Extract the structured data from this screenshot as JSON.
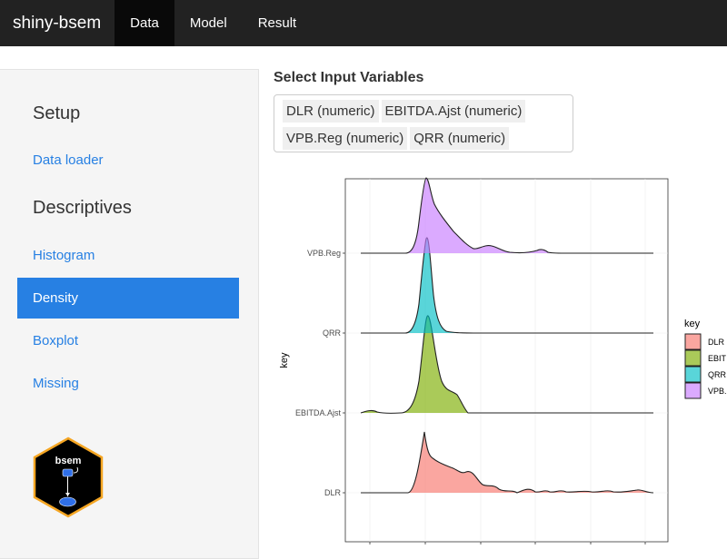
{
  "navbar": {
    "brand": "shiny-bsem",
    "tabs": [
      {
        "label": "Data",
        "active": true
      },
      {
        "label": "Model",
        "active": false
      },
      {
        "label": "Result",
        "active": false
      }
    ]
  },
  "sidebar": {
    "setup_heading": "Setup",
    "data_loader": "Data loader",
    "descriptives_heading": "Descriptives",
    "items": [
      "Histogram",
      "Density",
      "Boxplot",
      "Missing"
    ],
    "active_item": "Density",
    "logo_text": "bsem"
  },
  "main": {
    "select_label": "Select Input Variables",
    "selected_variables": [
      "DLR (numeric)",
      "EBITDA.Ajst (numeric)",
      "VPB.Reg (numeric)",
      "QRR (numeric)"
    ]
  },
  "colors": {
    "navbar_bg": "#222222",
    "accent": "#2780e3",
    "DLR": "#f8766d",
    "EBITDA.Ajst": "#7cae00",
    "QRR": "#00bfc4",
    "VPB.Reg": "#c77cff"
  },
  "chart_data": {
    "type": "ridgeline-density",
    "ylabel": "key",
    "categories": [
      "DLR",
      "EBITDA.Ajst",
      "QRR",
      "VPB.Reg"
    ],
    "legend": {
      "title": "key",
      "entries": [
        "DLR",
        "EBIT",
        "QRR",
        "VPB."
      ],
      "placement": "right"
    },
    "grid": true
  }
}
